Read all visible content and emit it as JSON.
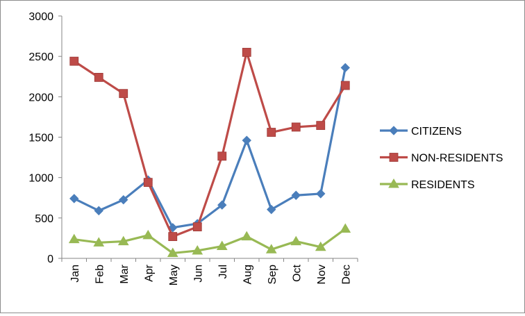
{
  "chart_data": {
    "type": "line",
    "categories": [
      "Jan",
      "Feb",
      "Mar",
      "Apr",
      "May",
      "Jun",
      "Jul",
      "Aug",
      "Sep",
      "Oct",
      "Nov",
      "Dec"
    ],
    "series": [
      {
        "name": "CITIZENS",
        "color": "#4A7EBB",
        "marker": "diamond",
        "values": [
          740,
          590,
          725,
          970,
          380,
          430,
          660,
          1460,
          605,
          780,
          800,
          2360
        ]
      },
      {
        "name": "NON-RESIDENTS",
        "color": "#BE4B48",
        "marker": "square",
        "values": [
          2440,
          2240,
          2040,
          940,
          270,
          390,
          1265,
          2550,
          1560,
          1625,
          1645,
          2140
        ]
      },
      {
        "name": "RESIDENTS",
        "color": "#98B954",
        "marker": "triangle",
        "values": [
          235,
          195,
          210,
          285,
          65,
          95,
          150,
          270,
          110,
          210,
          140,
          365
        ]
      }
    ],
    "yticks": [
      "0",
      "500",
      "1000",
      "1500",
      "2000",
      "2500",
      "3000"
    ],
    "ylim": [
      0,
      3000
    ],
    "grid": false,
    "legend": "right"
  }
}
